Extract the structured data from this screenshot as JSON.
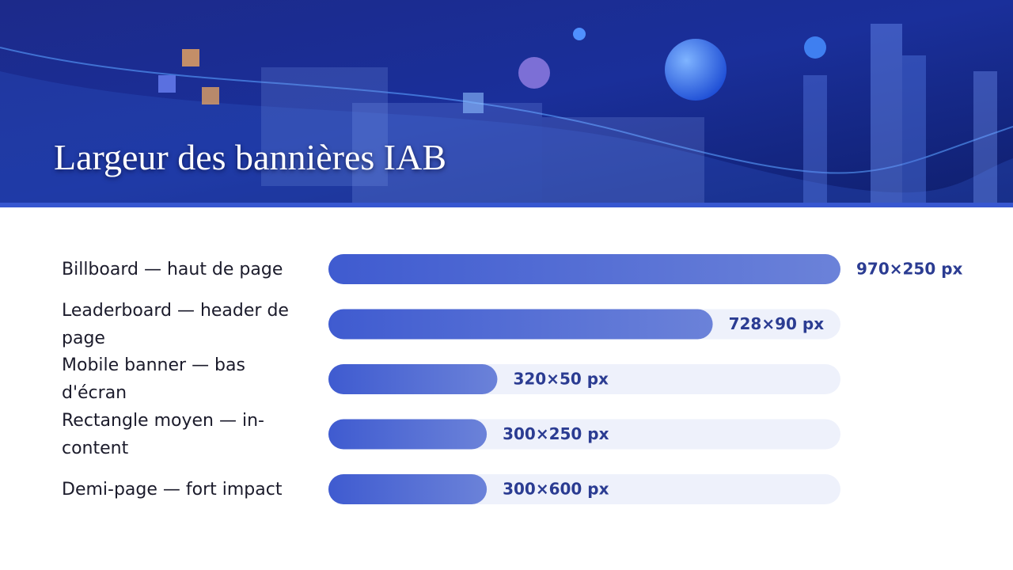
{
  "chart_data": {
    "type": "bar",
    "orientation": "horizontal",
    "title": "Largeur des bannières IAB",
    "categories": [
      "Billboard — haut de page",
      "Leaderboard — header de page",
      "Mobile banner — bas d'écran",
      "Rectangle moyen — in-content",
      "Demi-page — fort impact"
    ],
    "values": [
      970,
      728,
      320,
      300,
      300
    ],
    "value_labels": [
      "970×250 px",
      "728×90 px",
      "320×50 px",
      "300×250 px",
      "300×600 px"
    ],
    "color": "#4a63d2"
  }
}
